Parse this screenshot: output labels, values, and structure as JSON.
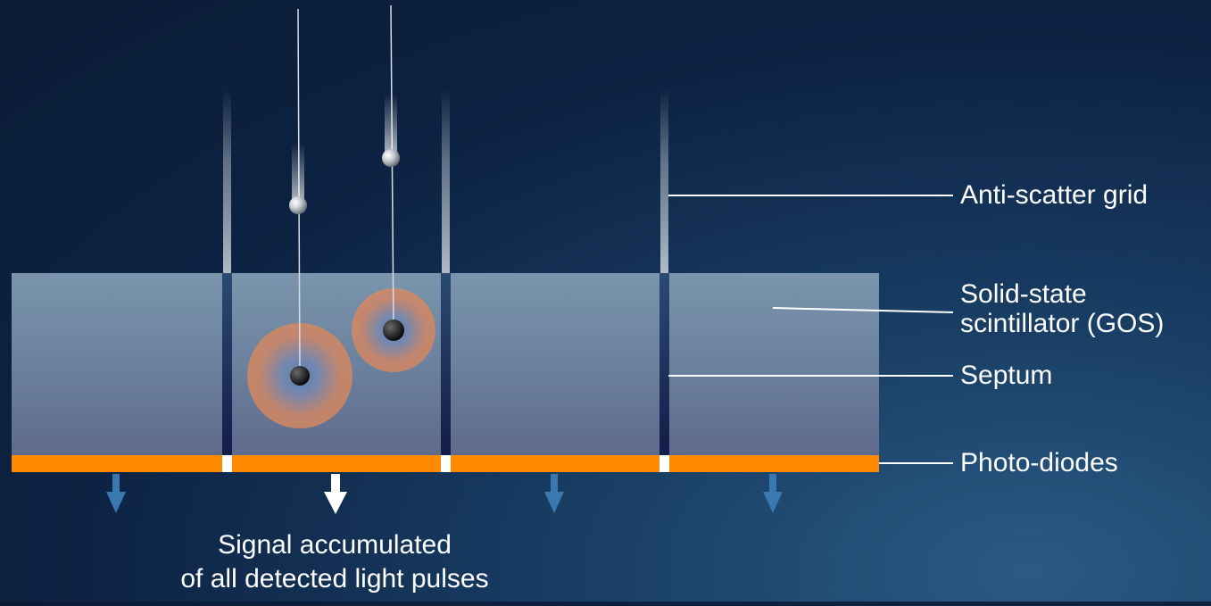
{
  "labels": {
    "anti_scatter_grid": "Anti-scatter grid",
    "scintillator_line1": "Solid-state",
    "scintillator_line2": "scintillator (GOS)",
    "septum": "Septum",
    "photo_diodes": "Photo-diodes"
  },
  "caption": {
    "line1": "Signal accumulated",
    "line2": "of all detected light pulses"
  },
  "colors": {
    "background": "#0d2343",
    "scintillator": "#6e8aa6",
    "photodiode": "#ff8a00",
    "septum": "#16234a",
    "side_arrow": "#3b78b0",
    "main_arrow": "#ffffff",
    "light_pulse": "#e08a5a"
  },
  "icons": {
    "xray_photon": "sphere-with-trail",
    "signal_arrow": "arrow-down"
  }
}
